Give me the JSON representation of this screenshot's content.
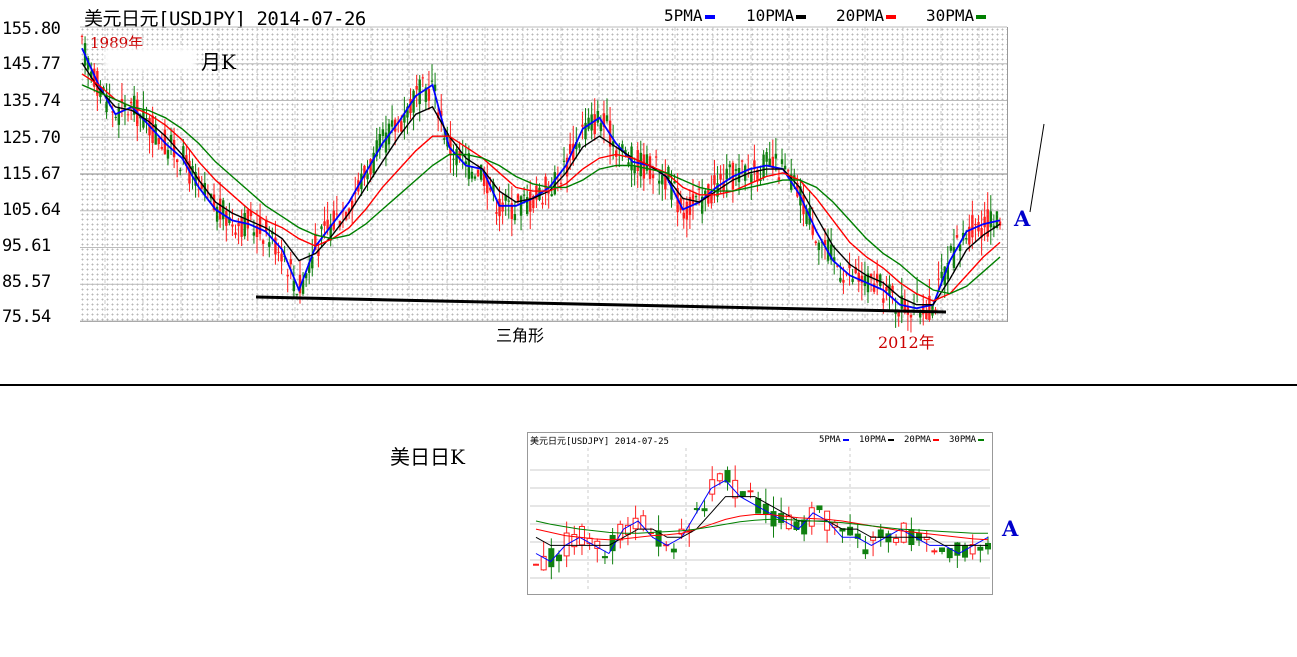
{
  "main_chart": {
    "title": "美元日元[USDJPY] 2014-07-26",
    "legend": [
      {
        "label": "5PMA",
        "color": "#0000ff"
      },
      {
        "label": "10PMA",
        "color": "#000000"
      },
      {
        "label": "20PMA",
        "color": "#ff0000"
      },
      {
        "label": "30PMA",
        "color": "#008000"
      }
    ],
    "annotations": {
      "start_year": "1989年",
      "period": "月K",
      "pattern": "三角形",
      "end_year": "2012年",
      "marker": "A"
    }
  },
  "small_chart": {
    "caption": "美日日K",
    "title": "美元日元[USDJPY] 2014-07-25",
    "legend": [
      {
        "label": "5PMA",
        "color": "#0000ff"
      },
      {
        "label": "10PMA",
        "color": "#000000"
      },
      {
        "label": "20PMA",
        "color": "#ff0000"
      },
      {
        "label": "30PMA",
        "color": "#008000"
      }
    ],
    "marker": "A"
  },
  "chart_data": [
    {
      "type": "line",
      "title": "美元日元[USDJPY] 2014-07-26",
      "y_ticks": [
        "155.80",
        "145.77",
        "135.74",
        "125.70",
        "115.67",
        "105.64",
        "95.61",
        "85.57",
        "75.54"
      ],
      "ylim": [
        75.54,
        155.8
      ],
      "x_period": "1989–2014",
      "grid": true,
      "legend_position": "top-right",
      "series": [
        {
          "name": "5PMA",
          "color": "#0000ff",
          "values": [
            150,
            140,
            132,
            134,
            129,
            124,
            120,
            112,
            106,
            103,
            102,
            100,
            95,
            84,
            96,
            102,
            108,
            116,
            124,
            130,
            137,
            140,
            123,
            118,
            117,
            107,
            107,
            109,
            112,
            118,
            128,
            131,
            124,
            119,
            118,
            115,
            106,
            108,
            112,
            115,
            117,
            118,
            117,
            110,
            100,
            92,
            88,
            86,
            84,
            80,
            79,
            80,
            92,
            100,
            102,
            103
          ]
        },
        {
          "name": "10PMA",
          "color": "#000000",
          "values": [
            146,
            139,
            134,
            133,
            130,
            126,
            121,
            114,
            108,
            105,
            103,
            101,
            98,
            92,
            94,
            99,
            105,
            112,
            119,
            126,
            132,
            134,
            126,
            120,
            117,
            111,
            108,
            109,
            111,
            116,
            123,
            126,
            123,
            120,
            118,
            115,
            109,
            108,
            111,
            114,
            116,
            117,
            117,
            112,
            104,
            96,
            91,
            88,
            86,
            82,
            80,
            80,
            87,
            95,
            99,
            102
          ]
        },
        {
          "name": "20PMA",
          "color": "#ff0000",
          "values": [
            143,
            140,
            136,
            134,
            132,
            129,
            125,
            119,
            114,
            110,
            106,
            103,
            101,
            98,
            96,
            98,
            101,
            106,
            112,
            117,
            122,
            126,
            126,
            123,
            120,
            116,
            112,
            111,
            111,
            113,
            117,
            120,
            121,
            120,
            118,
            116,
            112,
            110,
            110,
            111,
            113,
            115,
            116,
            114,
            109,
            103,
            97,
            93,
            90,
            86,
            83,
            81,
            83,
            88,
            93,
            97
          ]
        },
        {
          "name": "30PMA",
          "color": "#008000",
          "values": [
            140,
            138,
            136,
            134,
            133,
            131,
            128,
            124,
            119,
            115,
            111,
            107,
            104,
            101,
            99,
            98,
            99,
            102,
            106,
            110,
            114,
            118,
            121,
            121,
            120,
            118,
            115,
            113,
            112,
            112,
            114,
            117,
            118,
            118,
            117,
            116,
            114,
            112,
            111,
            111,
            112,
            113,
            114,
            114,
            112,
            108,
            103,
            98,
            94,
            91,
            87,
            84,
            83,
            85,
            89,
            93
          ]
        }
      ]
    },
    {
      "type": "line",
      "title": "美元日元[USDJPY] 2014-07-25",
      "grid": true,
      "legend_position": "top-right",
      "series": [
        {
          "name": "5PMA",
          "color": "#0000ff",
          "values": [
            4,
            3,
            5,
            6,
            5,
            4,
            7,
            8,
            6,
            5,
            6,
            9,
            12,
            13,
            11,
            10,
            9,
            8,
            7,
            9,
            8,
            6,
            6,
            5,
            6,
            7,
            6,
            5,
            5,
            4,
            5,
            6
          ]
        },
        {
          "name": "10PMA",
          "color": "#000000",
          "values": [
            6,
            5,
            5,
            5,
            5,
            5,
            6,
            7,
            7,
            6,
            6,
            7,
            9,
            11,
            11,
            11,
            10,
            9,
            8,
            8,
            8,
            7,
            7,
            6,
            6,
            6,
            6,
            6,
            5,
            5,
            5,
            5
          ]
        },
        {
          "name": "20PMA",
          "color": "#ff0000",
          "values": [
            7,
            6.6,
            6.2,
            6,
            5.8,
            5.7,
            5.8,
            6,
            6.2,
            6.3,
            6.5,
            7,
            7.6,
            8.2,
            8.6,
            8.8,
            8.8,
            8.6,
            8.4,
            8.3,
            8.2,
            8,
            7.7,
            7.4,
            7.1,
            6.8,
            6.6,
            6.4,
            6.2,
            6,
            5.8,
            5.7
          ]
        },
        {
          "name": "30PMA",
          "color": "#008000",
          "values": [
            8,
            7.6,
            7.3,
            7,
            6.8,
            6.6,
            6.5,
            6.5,
            6.6,
            6.7,
            6.8,
            7,
            7.3,
            7.6,
            7.9,
            8.1,
            8.2,
            8.2,
            8.1,
            8,
            7.9,
            7.8,
            7.6,
            7.4,
            7.2,
            7,
            6.9,
            6.8,
            6.7,
            6.6,
            6.5,
            6.5
          ]
        }
      ]
    }
  ]
}
